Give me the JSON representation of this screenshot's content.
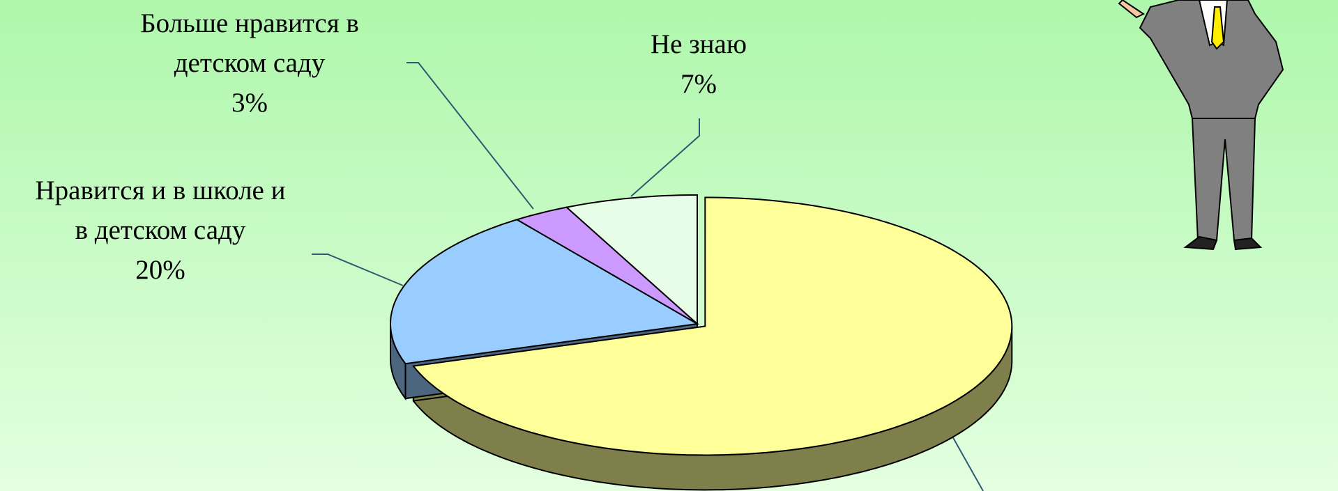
{
  "chart_data": {
    "type": "pie",
    "categories": [
      null,
      "Нравится и в школе и в детском саду",
      "Больше нравится в детском саду",
      "Не знаю"
    ],
    "values": [
      70,
      20,
      3,
      7
    ],
    "value_labels": [
      null,
      "20%",
      "3%",
      "7%"
    ],
    "colors": [
      "#ffff99",
      "#99ccff",
      "#cc99ff",
      "#e8fde8"
    ],
    "side_colors": [
      "#7f7f4c",
      "#4d6680",
      "#664c80",
      "#747e74"
    ],
    "exploded": [
      true,
      false,
      false,
      false
    ]
  }
}
